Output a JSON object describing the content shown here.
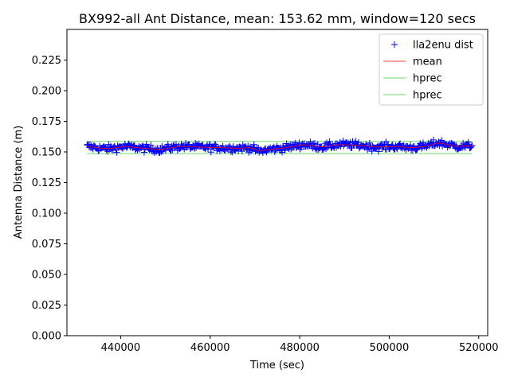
{
  "chart_data": {
    "type": "scatter",
    "title": "BX992-all Ant Distance, mean: 153.62 mm, window=120 secs",
    "xlabel": "Time (sec)",
    "ylabel": "Antenna Distance (m)",
    "xlim": [
      428000,
      522000
    ],
    "ylim": [
      0.0,
      0.25
    ],
    "xticks": [
      440000,
      460000,
      480000,
      500000,
      520000
    ],
    "xtick_labels": [
      "440000",
      "460000",
      "480000",
      "500000",
      "520000"
    ],
    "yticks": [
      0.0,
      0.025,
      0.05,
      0.075,
      0.1,
      0.125,
      0.15,
      0.175,
      0.2,
      0.225
    ],
    "ytick_labels": [
      "0.000",
      "0.025",
      "0.050",
      "0.075",
      "0.100",
      "0.125",
      "0.150",
      "0.175",
      "0.200",
      "0.225"
    ],
    "grid": false,
    "legend_position": "top-right",
    "series": [
      {
        "name": "lla2enu dist",
        "kind": "marker",
        "marker": "+",
        "color": "#0000ff",
        "x_range": [
          432500,
          518500
        ],
        "mean_level": 0.1536,
        "scatter_sd": 0.0015,
        "trend": [
          [
            432500,
            0.1545
          ],
          [
            437000,
            0.1525
          ],
          [
            441000,
            0.1545
          ],
          [
            445000,
            0.153
          ],
          [
            449000,
            0.152
          ],
          [
            453000,
            0.1545
          ],
          [
            457000,
            0.154
          ],
          [
            462000,
            0.1535
          ],
          [
            466000,
            0.153
          ],
          [
            469000,
            0.1535
          ],
          [
            471000,
            0.1505
          ],
          [
            473000,
            0.152
          ],
          [
            477000,
            0.1535
          ],
          [
            481000,
            0.156
          ],
          [
            485000,
            0.154
          ],
          [
            489000,
            0.156
          ],
          [
            493000,
            0.1555
          ],
          [
            497000,
            0.154
          ],
          [
            501000,
            0.1545
          ],
          [
            505000,
            0.1535
          ],
          [
            508000,
            0.1545
          ],
          [
            511000,
            0.1575
          ],
          [
            513000,
            0.156
          ],
          [
            515000,
            0.1545
          ],
          [
            518500,
            0.155
          ]
        ]
      },
      {
        "name": "mean",
        "kind": "line",
        "color": "#ff0000",
        "x_range": [
          432500,
          518500
        ],
        "window_secs": 120
      },
      {
        "name": "hprec",
        "kind": "hline",
        "color": "#66dd66",
        "x_range": [
          432500,
          518500
        ],
        "y": 0.1586
      },
      {
        "name": "hprec",
        "kind": "hline",
        "color": "#66dd66",
        "x_range": [
          432500,
          518500
        ],
        "y": 0.1486
      }
    ]
  }
}
